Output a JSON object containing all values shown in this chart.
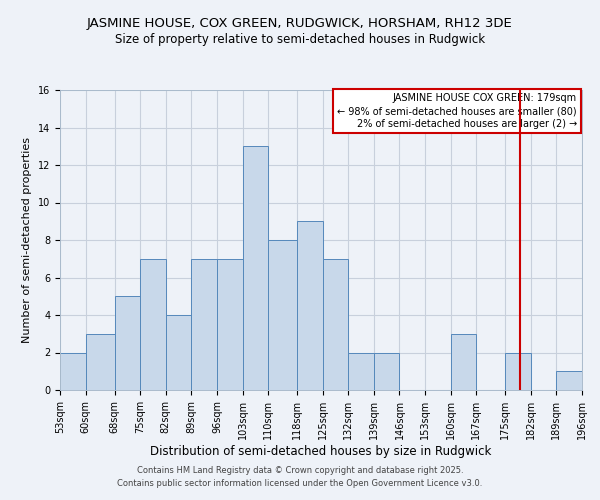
{
  "title": "JASMINE HOUSE, COX GREEN, RUDGWICK, HORSHAM, RH12 3DE",
  "subtitle": "Size of property relative to semi-detached houses in Rudgwick",
  "xlabel": "Distribution of semi-detached houses by size in Rudgwick",
  "ylabel": "Number of semi-detached properties",
  "bins": [
    53,
    60,
    68,
    75,
    82,
    89,
    96,
    103,
    110,
    118,
    125,
    132,
    139,
    146,
    153,
    160,
    167,
    175,
    182,
    189,
    196
  ],
  "counts": [
    2,
    3,
    5,
    7,
    4,
    7,
    7,
    13,
    8,
    9,
    7,
    2,
    2,
    0,
    0,
    3,
    0,
    2,
    0,
    1
  ],
  "bar_color": "#c8d8ea",
  "bar_edge_color": "#5588bb",
  "grid_color": "#c8d0dc",
  "vline_x": 179,
  "vline_color": "#cc0000",
  "legend_text_line1": "JASMINE HOUSE COX GREEN: 179sqm",
  "legend_text_line2": "← 98% of semi-detached houses are smaller (80)",
  "legend_text_line3": "2% of semi-detached houses are larger (2) →",
  "legend_box_edge_color": "#cc0000",
  "legend_box_face_color": "#ffffff",
  "ylim": [
    0,
    16
  ],
  "yticks": [
    0,
    2,
    4,
    6,
    8,
    10,
    12,
    14,
    16
  ],
  "footer_line1": "Contains HM Land Registry data © Crown copyright and database right 2025.",
  "footer_line2": "Contains public sector information licensed under the Open Government Licence v3.0.",
  "background_color": "#eef2f8",
  "title_fontsize": 9.5,
  "subtitle_fontsize": 8.5,
  "ylabel_fontsize": 8,
  "xlabel_fontsize": 8.5,
  "tick_fontsize": 7,
  "legend_fontsize": 7,
  "footer_fontsize": 6
}
